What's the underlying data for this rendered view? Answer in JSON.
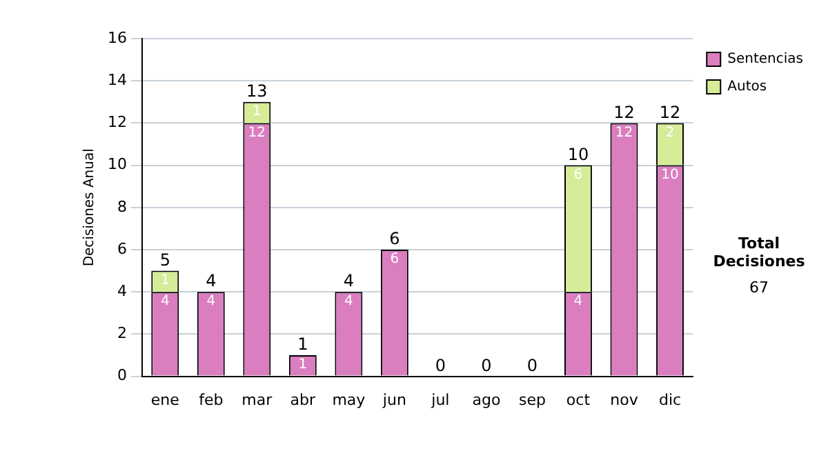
{
  "chart_data": {
    "type": "bar",
    "stacked": true,
    "ylabel": "Decisiones Anual",
    "categories": [
      "ene",
      "feb",
      "mar",
      "abr",
      "may",
      "jun",
      "jul",
      "ago",
      "sep",
      "oct",
      "nov",
      "dic"
    ],
    "series": [
      {
        "name": "Sentencias",
        "color": "#da7ec0",
        "values": [
          4,
          4,
          12,
          1,
          4,
          6,
          0,
          0,
          0,
          4,
          12,
          10
        ],
        "value_labels": [
          "4",
          "4",
          "12",
          "1",
          "4",
          "6",
          null,
          null,
          null,
          "4",
          "12",
          "10"
        ]
      },
      {
        "name": "Autos",
        "color": "#d6ec98",
        "values": [
          1,
          0,
          1,
          0,
          0,
          0,
          0,
          0,
          0,
          6,
          0,
          2
        ],
        "value_labels": [
          "1",
          null,
          "1",
          null,
          null,
          null,
          null,
          null,
          null,
          "6",
          null,
          "2"
        ]
      }
    ],
    "totals": [
      "5",
      "4",
      "13",
      "1",
      "4",
      "6",
      "0",
      "0",
      "0",
      "10",
      "12",
      "12"
    ],
    "ylim": [
      0,
      16
    ],
    "yticks": [
      0,
      2,
      4,
      6,
      8,
      10,
      12,
      14,
      16
    ],
    "grid": "y",
    "legend": "right",
    "annotations": [
      "Total Decisiones",
      "67"
    ]
  }
}
